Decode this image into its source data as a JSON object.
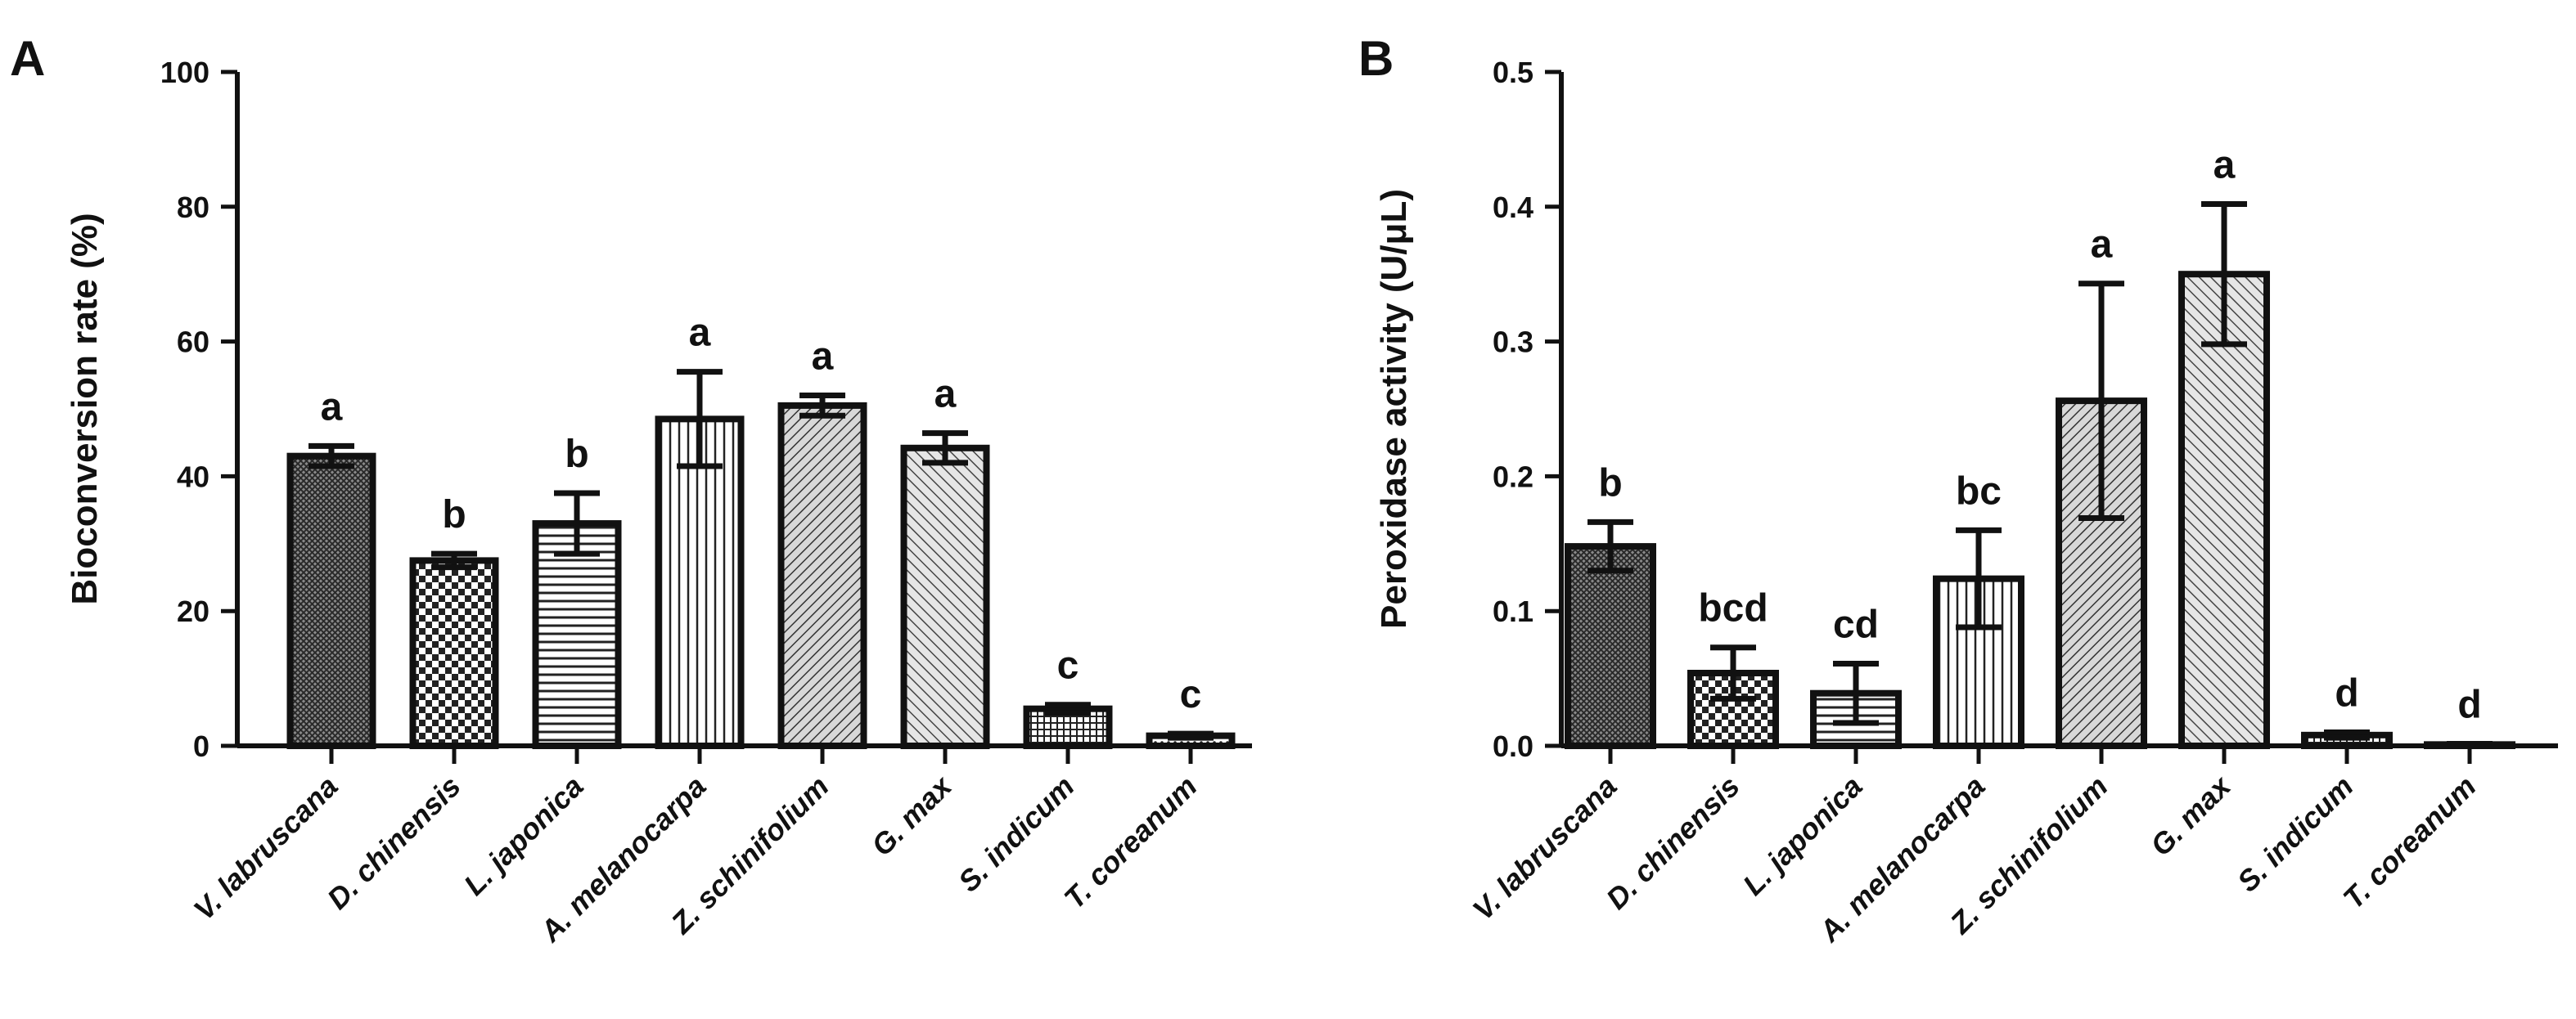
{
  "chart_data": [
    {
      "panel": "A",
      "type": "bar",
      "title": "",
      "xlabel": "",
      "ylabel": "Bioconversion rate (%)",
      "ylim": [
        0,
        100
      ],
      "yticks": [
        "0",
        "20",
        "40",
        "60",
        "80",
        "100"
      ],
      "categories": [
        "V. labruscana",
        "D. chinensis",
        "L. japonica",
        "A. melanocarpa",
        "Z. schinifolium",
        "G. max",
        "S. indicum",
        "T. coreanum"
      ],
      "values": [
        43,
        27.5,
        33,
        48.5,
        50.5,
        44.2,
        5.5,
        1.5
      ],
      "errors": [
        1.5,
        1.0,
        4.5,
        7.0,
        1.5,
        2.2,
        0.6,
        0.3
      ],
      "significance": [
        "a",
        "b",
        "b",
        "a",
        "a",
        "a",
        "c",
        "c"
      ],
      "patterns": [
        "dense-cross",
        "checker",
        "h-lines",
        "v-lines",
        "diag-fine",
        "diag-wide",
        "grid-fine",
        "dots"
      ]
    },
    {
      "panel": "B",
      "type": "bar",
      "title": "",
      "xlabel": "",
      "ylabel": "Peroxidase activity (U/μL)",
      "ylim": [
        0,
        0.5
      ],
      "yticks": [
        "0.0",
        "0.1",
        "0.2",
        "0.3",
        "0.4",
        "0.5"
      ],
      "categories": [
        "V. labruscana",
        "D. chinensis",
        "L. japonica",
        "A. melanocarpa",
        "Z. schinifolium",
        "G. max",
        "S. indicum",
        "T. coreanum"
      ],
      "values": [
        0.148,
        0.054,
        0.039,
        0.124,
        0.256,
        0.35,
        0.008,
        0.001
      ],
      "errors": [
        0.018,
        0.019,
        0.022,
        0.036,
        0.087,
        0.052,
        0.002,
        0.0005
      ],
      "significance": [
        "b",
        "bcd",
        "cd",
        "bc",
        "a",
        "a",
        "d",
        "d"
      ],
      "patterns": [
        "dense-cross",
        "checker",
        "h-lines",
        "v-lines",
        "diag-fine",
        "diag-wide",
        "grid-fine",
        "dots"
      ]
    }
  ]
}
